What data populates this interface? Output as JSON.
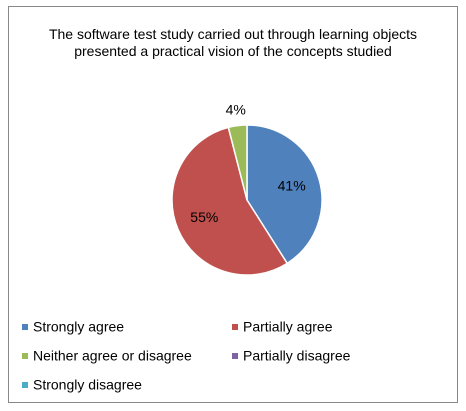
{
  "chart_data": {
    "type": "pie",
    "title": "The software test study carried out through learning objects presented a practical vision of the concepts studied",
    "categories": [
      "Strongly agree",
      "Partially agree",
      "Neither agree or disagree",
      "Partially disagree",
      "Strongly disagree"
    ],
    "values": [
      41,
      55,
      4,
      0,
      0
    ],
    "value_labels": [
      "41%",
      "55%",
      "4%",
      null,
      null
    ],
    "colors": [
      "#4f81bd",
      "#c0504d",
      "#9bbb59",
      "#8064a2",
      "#4bacc6"
    ],
    "legend": "bottom"
  }
}
